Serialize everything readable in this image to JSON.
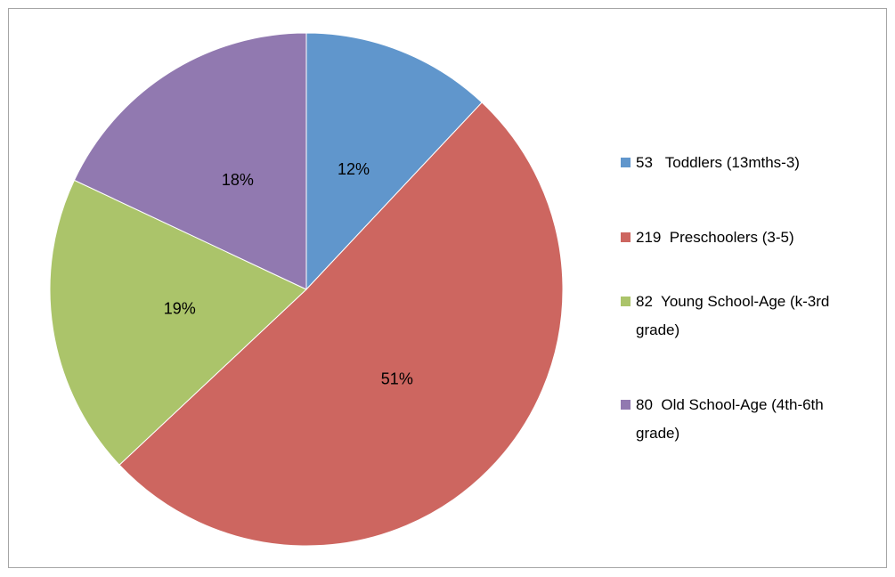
{
  "chart_data": {
    "type": "pie",
    "categories": [
      "53   Toddlers (13mths-3)",
      "219  Preschoolers (3-5)",
      "82  Young School-Age (k-3rd grade)",
      "80  Old School-Age (4th-6th grade)"
    ],
    "values": [
      12,
      51,
      19,
      18
    ],
    "value_labels": [
      "12%",
      "51%",
      "19%",
      "18%"
    ],
    "colors": [
      "#6096cc",
      "#cd6660",
      "#abc46a",
      "#9179b0"
    ],
    "legend": "right"
  }
}
